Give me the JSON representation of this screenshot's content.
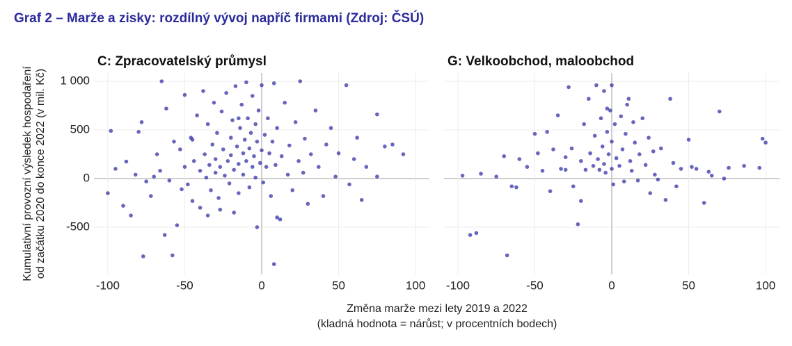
{
  "title": "Graf 2 –  Marže a zisky: rozdílný vývoj napříč firmami (Zdroj: ČSÚ)",
  "y_label": [
    "Kumulativní provozní výsledek hospodaření",
    "od začátku 2020 do konce 2022 (v mil. Kč)"
  ],
  "x_label": [
    "Změna marže mezi lety 2019 a 2022",
    "(kladná hodnota = nárůst; v procentních bodech)"
  ],
  "chart_data": [
    {
      "type": "scatter",
      "title": "C: Zpracovatelský průmysl",
      "color": "#3333a6",
      "grid": true,
      "xlim": [
        -109,
        109
      ],
      "ylim": [
        -986,
        1086
      ],
      "xticks": [
        -100,
        -50,
        0,
        50,
        100
      ],
      "yticks": [
        -500,
        0,
        500,
        {
          "value": 1000,
          "label": "1 000"
        }
      ],
      "x": [
        -100,
        -98,
        -95,
        -90,
        -88,
        -85,
        -80,
        -78,
        -77,
        -75,
        -72,
        -70,
        -68,
        -65,
        -63,
        -62,
        -60,
        -58,
        -57,
        -55,
        -53,
        -50,
        -50,
        -48,
        -46,
        -45,
        -44,
        -42,
        -40,
        -40,
        -38,
        -37,
        -36,
        -35,
        -34,
        -33,
        -32,
        -31,
        -30,
        -30,
        -29,
        -28,
        -27,
        -26,
        -25,
        -24,
        -23,
        -22,
        -21,
        -20,
        -20,
        -19,
        -18,
        -17,
        -16,
        -15,
        -15,
        -14,
        -13,
        -12,
        -12,
        -11,
        -10,
        -10,
        -9,
        -8,
        -8,
        -7,
        -6,
        -6,
        -5,
        -4,
        -4,
        -3,
        -3,
        -2,
        -1,
        0,
        0,
        1,
        2,
        3,
        4,
        5,
        6,
        7,
        8,
        8,
        9,
        10,
        10,
        12,
        13,
        15,
        17,
        18,
        20,
        22,
        24,
        25,
        27,
        28,
        30,
        32,
        35,
        37,
        40,
        42,
        45,
        48,
        50,
        55,
        57,
        60,
        62,
        65,
        68,
        75,
        75,
        80,
        85,
        92,
        -35,
        -27,
        -18,
        -45,
        -52,
        -66,
        -82,
        -15
      ],
      "y": [
        -150,
        490,
        100,
        -280,
        175,
        -380,
        480,
        580,
        -800,
        -30,
        -180,
        20,
        250,
        1000,
        -580,
        720,
        -20,
        -790,
        380,
        -480,
        300,
        860,
        120,
        -60,
        420,
        -230,
        180,
        650,
        80,
        -300,
        900,
        250,
        10,
        560,
        140,
        -120,
        350,
        780,
        200,
        60,
        470,
        -200,
        120,
        690,
        300,
        30,
        880,
        180,
        -50,
        420,
        240,
        600,
        90,
        950,
        330,
        -150,
        150,
        520,
        760,
        260,
        40,
        400,
        990,
        180,
        620,
        310,
        -90,
        470,
        850,
        120,
        230,
        560,
        10,
        -500,
        380,
        700,
        160,
        960,
        290,
        -40,
        450,
        120,
        620,
        260,
        -180,
        380,
        980,
        -880,
        140,
        -400,
        520,
        -420,
        230,
        780,
        40,
        340,
        -120,
        580,
        180,
        1000,
        60,
        410,
        -260,
        250,
        700,
        120,
        -180,
        350,
        520,
        20,
        260,
        960,
        -60,
        200,
        420,
        -220,
        120,
        660,
        20,
        330,
        350,
        250,
        -380,
        -320,
        -350,
        400,
        -110,
        80,
        40,
        620
      ]
    },
    {
      "type": "scatter",
      "title": "G: Velkoobchod, maloobchod",
      "color": "#3333a6",
      "grid": true,
      "xlim": [
        -109,
        109
      ],
      "ylim": [
        -986,
        1086
      ],
      "xticks": [
        -100,
        -50,
        0,
        50,
        100
      ],
      "yticks": [
        -500,
        0,
        500,
        1000
      ],
      "x": [
        -97,
        -92,
        -88,
        -85,
        -75,
        -70,
        -68,
        -62,
        -60,
        -55,
        -50,
        -48,
        -45,
        -42,
        -40,
        -38,
        -35,
        -33,
        -30,
        -28,
        -26,
        -25,
        -22,
        -20,
        -20,
        -18,
        -17,
        -15,
        -14,
        -12,
        -11,
        -10,
        -9,
        -8,
        -7,
        -6,
        -5,
        -5,
        -4,
        -3,
        -2,
        -1,
        0,
        0,
        0,
        1,
        2,
        3,
        5,
        6,
        7,
        8,
        9,
        10,
        12,
        13,
        14,
        15,
        17,
        18,
        20,
        22,
        24,
        25,
        27,
        30,
        32,
        35,
        38,
        40,
        42,
        45,
        50,
        52,
        55,
        60,
        63,
        65,
        70,
        73,
        76,
        86,
        96,
        98,
        100,
        -65,
        -3,
        11,
        28,
        -30
      ],
      "y": [
        30,
        -580,
        -560,
        50,
        20,
        230,
        -790,
        -90,
        200,
        120,
        460,
        260,
        80,
        480,
        -130,
        300,
        650,
        100,
        90,
        940,
        310,
        -80,
        -470,
        -230,
        180,
        560,
        90,
        820,
        260,
        130,
        440,
        960,
        200,
        90,
        620,
        330,
        900,
        150,
        60,
        480,
        250,
        700,
        960,
        380,
        100,
        -60,
        560,
        210,
        130,
        640,
        300,
        -30,
        460,
        760,
        180,
        80,
        580,
        370,
        -20,
        250,
        620,
        140,
        420,
        -150,
        280,
        -10,
        310,
        -220,
        820,
        160,
        -80,
        100,
        400,
        120,
        100,
        -250,
        70,
        30,
        690,
        0,
        110,
        130,
        110,
        410,
        370,
        -80,
        720,
        820,
        40,
        220
      ]
    }
  ]
}
